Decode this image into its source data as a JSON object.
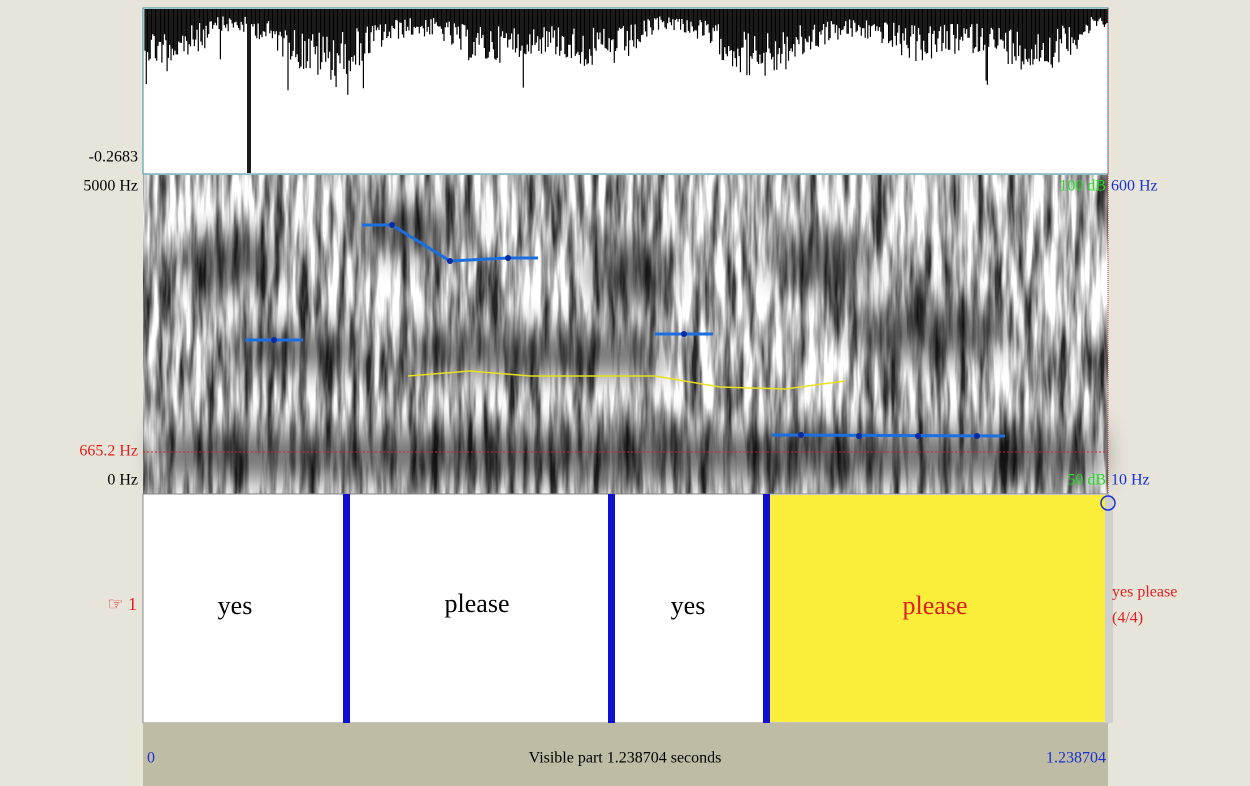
{
  "waveform": {
    "min_label": "-0.2683"
  },
  "spectrogram": {
    "top_freq": "5000 Hz",
    "cursor_freq": "665.2 Hz",
    "bottom_freq": "0 Hz",
    "top_db": "100 dB",
    "bottom_db": "50 dB",
    "top_pitch": "600 Hz",
    "bottom_pitch": "10 Hz"
  },
  "tier": {
    "label": "☞ 1",
    "intervals": [
      "yes",
      "please",
      "yes",
      "please"
    ],
    "name": "yes please",
    "position": "(4/4)"
  },
  "footer": {
    "start": "0",
    "visible": "Visible part 1.238704 seconds",
    "end": "1.238704"
  }
}
